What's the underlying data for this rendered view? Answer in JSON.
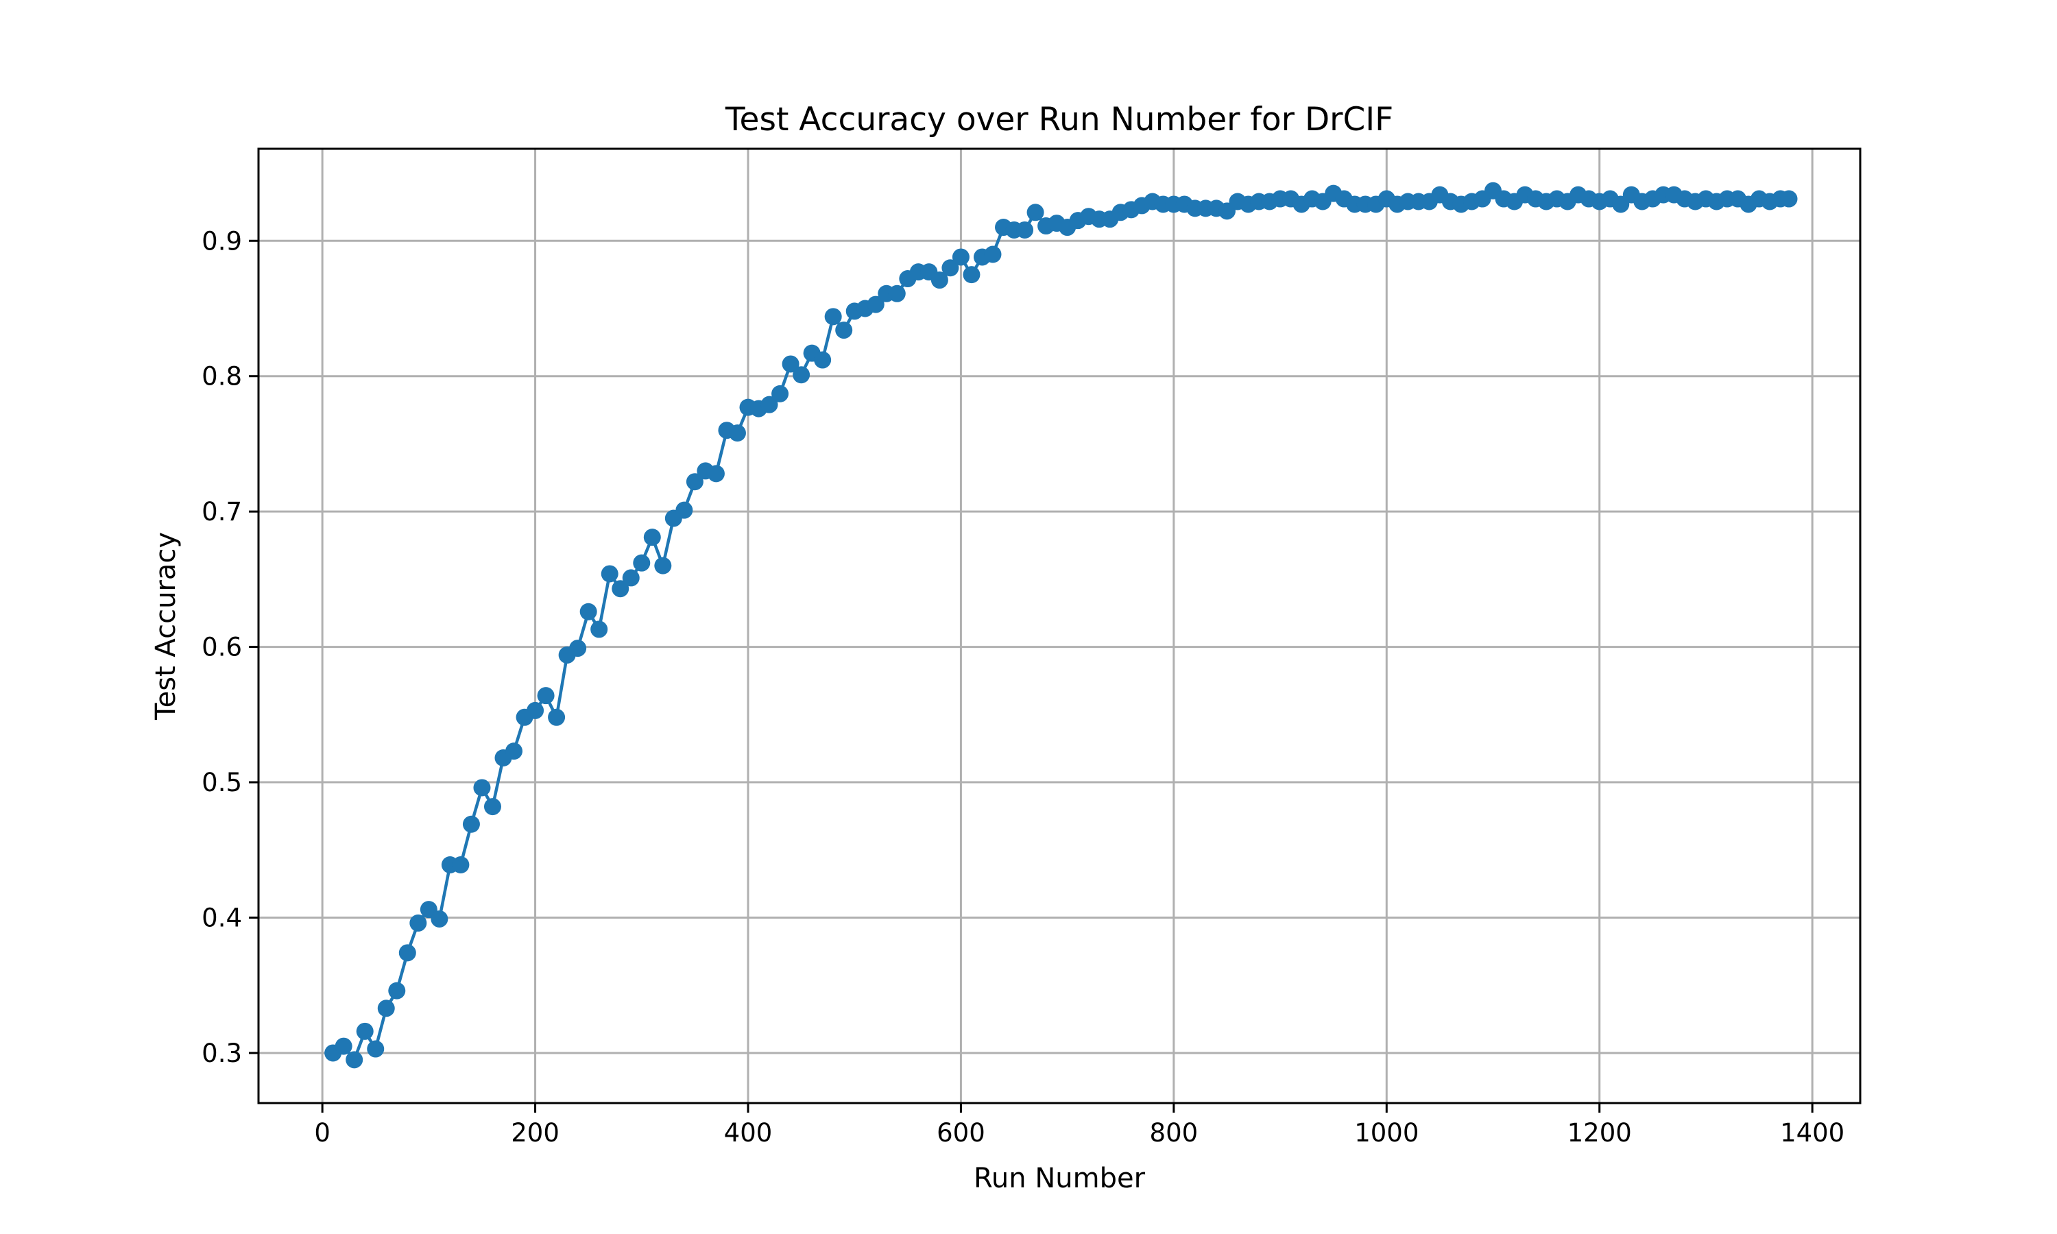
{
  "chart_data": {
    "type": "line",
    "title": "Test Accuracy over Run Number for DrCIF",
    "xlabel": "Run Number",
    "ylabel": "Test Accuracy",
    "xlim": [
      -60,
      1445
    ],
    "ylim": [
      0.263,
      0.968
    ],
    "xticks": [
      0,
      200,
      400,
      600,
      800,
      1000,
      1200,
      1400
    ],
    "yticks": [
      0.3,
      0.4,
      0.5,
      0.6,
      0.7,
      0.8,
      0.9
    ],
    "xtick_labels": [
      "0",
      "200",
      "400",
      "600",
      "800",
      "1000",
      "1200",
      "1400"
    ],
    "ytick_labels": [
      "0.3",
      "0.4",
      "0.5",
      "0.6",
      "0.7",
      "0.8",
      "0.9"
    ],
    "grid": true,
    "marker": "circle",
    "colors": {
      "series": "#1f77b4"
    },
    "series": [
      {
        "x": [
          10,
          20,
          30,
          40,
          50,
          60,
          70,
          80,
          90,
          100,
          110,
          120,
          130,
          140,
          150,
          160,
          170,
          180,
          190,
          200,
          210,
          220,
          230,
          240,
          250,
          260,
          270,
          280,
          290,
          300,
          310,
          320,
          330,
          340,
          350,
          360,
          370,
          380,
          390,
          400,
          410,
          420,
          430,
          440,
          450,
          460,
          470,
          480,
          490,
          500,
          510,
          520,
          530,
          540,
          550,
          560,
          570,
          580,
          590,
          600,
          610,
          620,
          630,
          640,
          650,
          660,
          670,
          680,
          690,
          700,
          710,
          720,
          730,
          740,
          750,
          760,
          770,
          780,
          790,
          800,
          810,
          820,
          830,
          840,
          850,
          860,
          870,
          880,
          890,
          900,
          910,
          920,
          930,
          940,
          950,
          960,
          970,
          980,
          990,
          1000,
          1010,
          1020,
          1030,
          1040,
          1050,
          1060,
          1070,
          1080,
          1090,
          1100,
          1110,
          1120,
          1130,
          1140,
          1150,
          1160,
          1170,
          1180,
          1190,
          1200,
          1210,
          1220,
          1230,
          1240,
          1250,
          1260,
          1270,
          1280,
          1290,
          1300,
          1310,
          1320,
          1330,
          1340,
          1350,
          1360,
          1370,
          1378
        ],
        "values": [
          0.3,
          0.305,
          0.295,
          0.316,
          0.303,
          0.333,
          0.346,
          0.374,
          0.396,
          0.406,
          0.399,
          0.439,
          0.439,
          0.469,
          0.496,
          0.482,
          0.518,
          0.523,
          0.548,
          0.553,
          0.564,
          0.548,
          0.594,
          0.599,
          0.626,
          0.613,
          0.654,
          0.643,
          0.651,
          0.662,
          0.681,
          0.66,
          0.695,
          0.701,
          0.722,
          0.73,
          0.728,
          0.76,
          0.758,
          0.777,
          0.776,
          0.779,
          0.787,
          0.809,
          0.801,
          0.817,
          0.812,
          0.844,
          0.834,
          0.848,
          0.85,
          0.853,
          0.861,
          0.861,
          0.872,
          0.877,
          0.877,
          0.871,
          0.88,
          0.888,
          0.875,
          0.888,
          0.89,
          0.91,
          0.908,
          0.908,
          0.921,
          0.911,
          0.913,
          0.91,
          0.915,
          0.918,
          0.916,
          0.916,
          0.921,
          0.923,
          0.926,
          0.929,
          0.927,
          0.927,
          0.927,
          0.924,
          0.924,
          0.924,
          0.922,
          0.929,
          0.927,
          0.929,
          0.929,
          0.931,
          0.931,
          0.927,
          0.931,
          0.929,
          0.935,
          0.931,
          0.927,
          0.927,
          0.927,
          0.931,
          0.927,
          0.929,
          0.929,
          0.929,
          0.934,
          0.929,
          0.927,
          0.929,
          0.931,
          0.937,
          0.931,
          0.929,
          0.934,
          0.931,
          0.929,
          0.931,
          0.929,
          0.934,
          0.931,
          0.929,
          0.931,
          0.927,
          0.934,
          0.929,
          0.931,
          0.934,
          0.934,
          0.931,
          0.929,
          0.931,
          0.929,
          0.931,
          0.931,
          0.927,
          0.931,
          0.929,
          0.931,
          0.931
        ]
      }
    ]
  }
}
